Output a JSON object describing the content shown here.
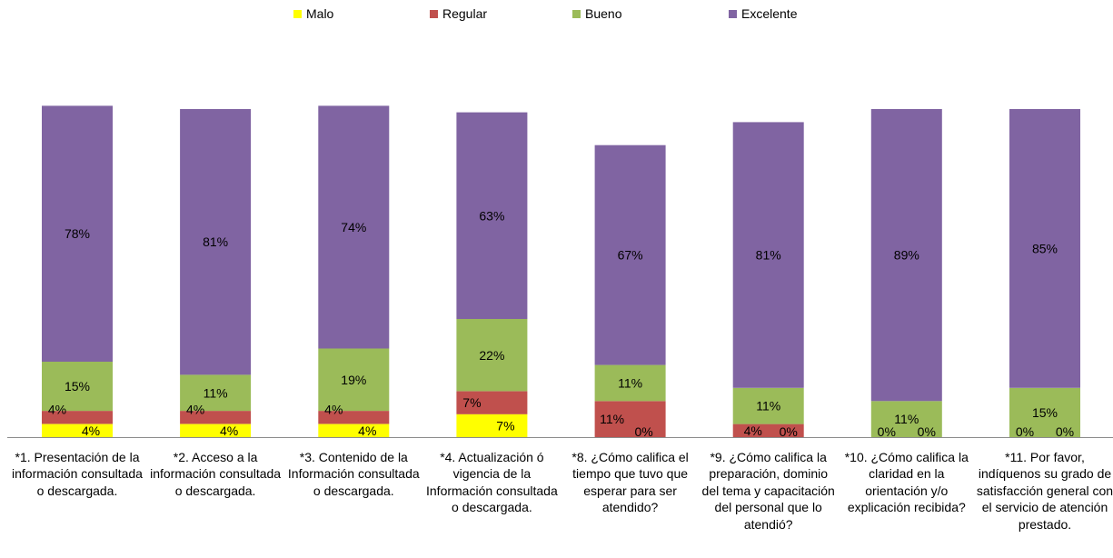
{
  "chart_data": {
    "type": "bar",
    "stacked": true,
    "categories": [
      "*1. Presentación de la información consultada o descargada.",
      "*2. Acceso a la información consultada o descargada.",
      "*3. Contenido de la Información consultada o descargada.",
      "*4. Actualización ó vigencia de la Información consultada o descargada.",
      "*8. ¿Cómo califica el tiempo que tuvo que esperar para ser atendido?",
      "*9. ¿Cómo califica la preparación, dominio del tema y capacitación del personal que lo atendió?",
      "*10. ¿Cómo califica la claridad en la orientación y/o explicación recibida?",
      "*11. Por favor, indíquenos su grado de satisfacción general con el servicio de atención prestado."
    ],
    "series": [
      {
        "name": "Malo",
        "color": "#FFFF00",
        "values": [
          4,
          4,
          4,
          7,
          0,
          0,
          0,
          0
        ],
        "labels": [
          "4%",
          "4%",
          "4%",
          "7%",
          "0%",
          "0%",
          "0%",
          "0%"
        ]
      },
      {
        "name": "Regular",
        "color": "#C0504D",
        "values": [
          4,
          4,
          4,
          7,
          11,
          4,
          0,
          0
        ],
        "labels": [
          "4%",
          "4%",
          "4%",
          "7%",
          "11%",
          "4%",
          "0%",
          "0%"
        ]
      },
      {
        "name": "Bueno",
        "color": "#9BBB59",
        "values": [
          15,
          11,
          19,
          22,
          11,
          11,
          11,
          15
        ],
        "labels": [
          "15%",
          "11%",
          "19%",
          "22%",
          "11%",
          "11%",
          "11%",
          "15%"
        ]
      },
      {
        "name": "Excelente",
        "color": "#8064A2",
        "values": [
          78,
          81,
          74,
          63,
          67,
          81,
          89,
          85
        ],
        "labels": [
          "78%",
          "81%",
          "74%",
          "63%",
          "67%",
          "81%",
          "89%",
          "85%"
        ]
      }
    ],
    "ylim": [
      0,
      100
    ],
    "grid": false,
    "legend_position": "top"
  }
}
